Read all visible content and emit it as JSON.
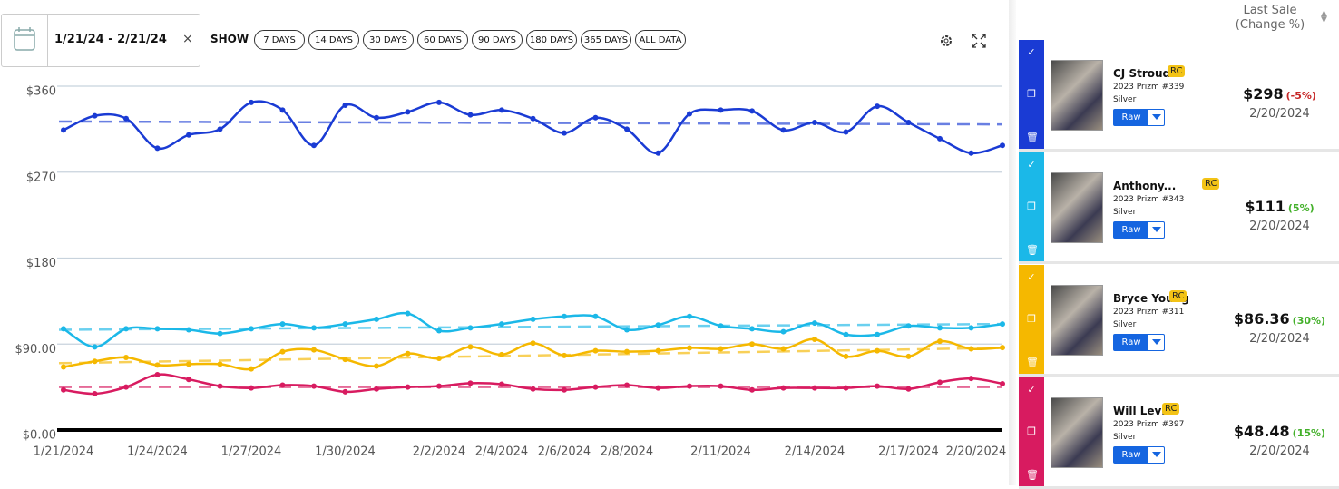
{
  "toolbar": {
    "date_range": "1/21/24 - 2/21/24",
    "show_label": "SHOW",
    "ranges": [
      "7 DAYS",
      "14 DAYS",
      "30 DAYS",
      "60 DAYS",
      "90 DAYS",
      "180 DAYS",
      "365 DAYS",
      "ALL DATA"
    ]
  },
  "chart_data": {
    "type": "line",
    "categories": [
      "1/21/2024",
      null,
      null,
      "1/24/2024",
      null,
      null,
      "1/27/2024",
      null,
      null,
      "1/30/2024",
      null,
      null,
      "2/2/2024",
      null,
      "2/4/2024",
      null,
      "2/6/2024",
      null,
      "2/8/2024",
      null,
      null,
      "2/11/2024",
      null,
      null,
      "2/14/2024",
      null,
      null,
      "2/17/2024",
      null,
      null,
      "2/20/2024"
    ],
    "ylim": [
      0,
      360
    ],
    "yticks": [
      {
        "value": 0,
        "label": "$0.00"
      },
      {
        "value": 90,
        "label": "$90.00"
      },
      {
        "value": 180,
        "label": "$180"
      },
      {
        "value": 270,
        "label": "$270"
      },
      {
        "value": 360,
        "label": "$360"
      }
    ],
    "grid": true,
    "series": [
      {
        "name": "CJ Stroud",
        "color": "#1a3bd4",
        "trend": [
          323,
          320
        ],
        "values": [
          314,
          329,
          326,
          295,
          309,
          315,
          343,
          335,
          298,
          340,
          327,
          333,
          343,
          330,
          335,
          326,
          311,
          327,
          315,
          290,
          331,
          335,
          334,
          314,
          322,
          312,
          339,
          322,
          305,
          290,
          298
        ]
      },
      {
        "name": "Anthony...",
        "color": "#1bb8e8",
        "trend": [
          105,
          111
        ],
        "values": [
          106,
          87,
          106,
          106,
          105,
          101,
          106,
          111,
          107,
          111,
          116,
          122,
          104,
          107,
          111,
          116,
          119,
          119,
          105,
          110,
          119,
          109,
          106,
          103,
          112,
          100,
          100,
          109,
          107,
          107,
          111
        ]
      },
      {
        "name": "Bryce Young",
        "color": "#f5b800",
        "trend": [
          70,
          86
        ],
        "values": [
          66,
          72,
          76,
          68,
          69,
          69,
          64,
          82,
          84,
          74,
          67,
          80,
          75,
          87,
          79,
          91,
          78,
          83,
          82,
          83,
          86,
          85,
          90,
          85,
          95,
          77,
          83,
          77,
          93,
          85,
          86.36
        ]
      },
      {
        "name": "Will Levis",
        "color": "#d81b60",
        "trend": [
          45,
          45
        ],
        "values": [
          42,
          38,
          45,
          58,
          53,
          46,
          44,
          47,
          46,
          40,
          43,
          45,
          46,
          49,
          48,
          43,
          42,
          45,
          47,
          44,
          46,
          46,
          42,
          44,
          44,
          44,
          46,
          43,
          50,
          54,
          48.48
        ]
      }
    ]
  },
  "sidebar": {
    "header": [
      "Last Sale",
      "(Change %)"
    ],
    "cards": [
      {
        "set": "2023 Prizm #339",
        "variant": "Silver",
        "badge": "RC",
        "grade": "Raw",
        "price": "$298",
        "change": "(-5%)",
        "date": "2/20/2024"
      },
      {
        "set": "2023 Prizm #343",
        "variant": "Silver",
        "badge": "RC",
        "grade": "Raw",
        "price": "$111",
        "change": "(5%)",
        "date": "2/20/2024"
      },
      {
        "set": "2023 Prizm #311",
        "variant": "Silver",
        "badge": "RC",
        "grade": "Raw",
        "price": "$86.36",
        "change": "(30%)",
        "date": "2/20/2024"
      },
      {
        "set": "2023 Prizm #397",
        "variant": "Silver",
        "badge": "RC",
        "grade": "Raw",
        "price": "$48.48",
        "change": "(15%)",
        "date": "2/20/2024"
      }
    ]
  }
}
